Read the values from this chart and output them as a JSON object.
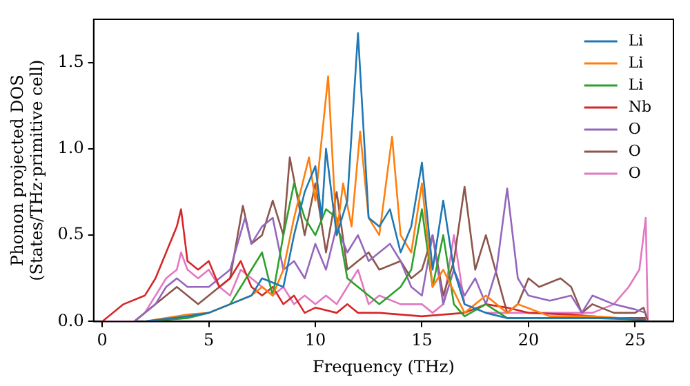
{
  "chart_data": {
    "type": "line",
    "xlabel": "Frequency (THz)",
    "ylabel": "Phonon projected DOS\n(States/THz·primitive cell)",
    "xlim": [
      -0.4,
      26.8
    ],
    "ylim": [
      0,
      1.75
    ],
    "xticks": [
      0,
      5,
      10,
      15,
      20,
      25
    ],
    "yticks": [
      {
        "value": 0,
        "label": "0.0"
      },
      {
        "value": 0.5,
        "label": "0.5"
      },
      {
        "value": 1,
        "label": "1.0"
      },
      {
        "value": 1.5,
        "label": "1.5"
      }
    ],
    "legend": "top right",
    "grid": false,
    "marker": "none",
    "line_style": "solid",
    "series": [
      {
        "name": "Li",
        "color": "#1f77b4",
        "x": [
          2,
          4,
          5,
          6,
          7,
          7.5,
          8.5,
          9,
          9.5,
          10,
          10.3,
          10.5,
          11,
          11.5,
          12,
          12.5,
          13,
          13.5,
          14,
          14.5,
          15,
          15.5,
          16,
          16.5,
          17,
          18,
          19,
          20,
          22,
          24,
          25.5
        ],
        "values": [
          0,
          0.03,
          0.05,
          0.1,
          0.15,
          0.25,
          0.2,
          0.5,
          0.75,
          0.9,
          0.6,
          1.0,
          0.5,
          0.7,
          1.67,
          0.6,
          0.55,
          0.65,
          0.4,
          0.55,
          0.92,
          0.3,
          0.7,
          0.3,
          0.1,
          0.05,
          0.02,
          0.02,
          0.02,
          0.02,
          0.01
        ]
      },
      {
        "name": "Li",
        "color": "#ff7f0e",
        "x": [
          2,
          4,
          5,
          6,
          7,
          7.5,
          8,
          8.5,
          9,
          9.7,
          10,
          10.6,
          11,
          11.3,
          11.7,
          12.1,
          12.5,
          13,
          13.6,
          14,
          14.5,
          15,
          15.5,
          16,
          17,
          18,
          19,
          19.5,
          21,
          23,
          25.5
        ],
        "values": [
          0,
          0.04,
          0.05,
          0.1,
          0.15,
          0.2,
          0.15,
          0.3,
          0.6,
          0.95,
          0.7,
          1.42,
          0.5,
          0.8,
          0.55,
          1.1,
          0.6,
          0.5,
          1.07,
          0.5,
          0.4,
          0.8,
          0.2,
          0.3,
          0.05,
          0.15,
          0.05,
          0.1,
          0.03,
          0.03,
          0.01
        ]
      },
      {
        "name": "Li",
        "color": "#2ca02c",
        "x": [
          2,
          4,
          5,
          6,
          7,
          7.5,
          8,
          8.5,
          9,
          9.5,
          10,
          10.5,
          11,
          11.5,
          12,
          13,
          13.5,
          14,
          14.5,
          15,
          15.5,
          16,
          16.5,
          17,
          18,
          19,
          21,
          23,
          25.5
        ],
        "values": [
          0,
          0.02,
          0.05,
          0.1,
          0.3,
          0.4,
          0.15,
          0.5,
          0.8,
          0.6,
          0.5,
          0.65,
          0.6,
          0.25,
          0.2,
          0.1,
          0.15,
          0.2,
          0.3,
          0.65,
          0.2,
          0.5,
          0.1,
          0.03,
          0.1,
          0.02,
          0.02,
          0.02,
          0.01
        ]
      },
      {
        "name": "Nb",
        "color": "#d62728",
        "x": [
          0,
          1,
          2,
          2.5,
          3,
          3.5,
          3.7,
          4,
          4.5,
          5,
          5.5,
          6,
          6.5,
          7,
          7.5,
          8,
          8.5,
          9,
          9.5,
          10,
          11,
          11.5,
          12,
          13,
          15,
          17,
          18,
          19,
          20,
          22,
          24,
          25.5
        ],
        "values": [
          0,
          0.1,
          0.15,
          0.25,
          0.4,
          0.55,
          0.65,
          0.35,
          0.3,
          0.35,
          0.2,
          0.25,
          0.35,
          0.2,
          0.15,
          0.2,
          0.1,
          0.15,
          0.05,
          0.08,
          0.05,
          0.1,
          0.05,
          0.05,
          0.03,
          0.05,
          0.1,
          0.08,
          0.05,
          0.04,
          0.02,
          0.02
        ]
      },
      {
        "name": "O",
        "color": "#9467bd",
        "x": [
          1.5,
          2.5,
          3,
          3.5,
          4,
          5,
          5.5,
          6,
          6.7,
          7,
          7.5,
          8,
          8.5,
          9,
          9.5,
          10,
          10.5,
          11,
          11.5,
          12,
          12.5,
          13,
          13.5,
          14,
          14.5,
          15,
          15.5,
          16,
          16.5,
          17,
          17.5,
          18,
          18.5,
          19,
          19.5,
          20,
          21,
          22,
          22.5,
          23,
          24,
          25,
          25.5
        ],
        "values": [
          0,
          0.1,
          0.2,
          0.25,
          0.2,
          0.2,
          0.25,
          0.3,
          0.6,
          0.45,
          0.55,
          0.6,
          0.3,
          0.35,
          0.25,
          0.45,
          0.3,
          0.55,
          0.4,
          0.5,
          0.35,
          0.4,
          0.45,
          0.35,
          0.2,
          0.15,
          0.5,
          0.1,
          0.3,
          0.15,
          0.25,
          0.1,
          0.3,
          0.77,
          0.25,
          0.15,
          0.12,
          0.15,
          0.05,
          0.15,
          0.1,
          0.07,
          0.05
        ]
      },
      {
        "name": "O",
        "color": "#8c564b",
        "x": [
          1.5,
          2.5,
          3,
          3.5,
          4,
          4.5,
          5,
          5.5,
          6,
          6.6,
          7,
          7.5,
          8,
          8.5,
          8.8,
          9.5,
          10,
          10.5,
          11,
          11.5,
          12,
          12.5,
          13,
          14,
          14.5,
          15,
          15.5,
          16,
          16.5,
          17,
          17.5,
          18,
          19,
          19.5,
          20,
          20.5,
          21.5,
          22,
          22.5,
          23,
          24,
          25,
          25.4,
          25.6
        ],
        "values": [
          0,
          0.1,
          0.15,
          0.2,
          0.15,
          0.1,
          0.15,
          0.2,
          0.25,
          0.67,
          0.45,
          0.5,
          0.7,
          0.5,
          0.95,
          0.5,
          0.8,
          0.4,
          0.75,
          0.3,
          0.35,
          0.4,
          0.3,
          0.35,
          0.25,
          0.3,
          0.5,
          0.15,
          0.35,
          0.78,
          0.3,
          0.5,
          0.05,
          0.1,
          0.25,
          0.2,
          0.25,
          0.2,
          0.05,
          0.1,
          0.05,
          0.05,
          0.08,
          0
        ]
      },
      {
        "name": "O",
        "color": "#e377c2",
        "x": [
          0,
          1.5,
          2,
          2.5,
          3,
          3.5,
          3.7,
          4,
          4.5,
          5,
          5.5,
          6,
          6.5,
          7,
          7.5,
          8,
          8.5,
          9,
          9.5,
          10,
          10.5,
          11,
          11.5,
          12,
          12.5,
          13,
          14,
          15,
          15.5,
          16,
          16.5,
          17,
          18,
          20,
          22,
          23,
          24,
          24.7,
          25.2,
          25.5,
          25.6
        ],
        "values": [
          0,
          0,
          0.05,
          0.15,
          0.25,
          0.3,
          0.4,
          0.3,
          0.25,
          0.3,
          0.2,
          0.15,
          0.3,
          0.25,
          0.2,
          0.15,
          0.2,
          0.1,
          0.15,
          0.1,
          0.15,
          0.1,
          0.2,
          0.3,
          0.1,
          0.15,
          0.1,
          0.1,
          0.05,
          0.1,
          0.5,
          0.1,
          0.05,
          0.05,
          0.05,
          0.05,
          0.1,
          0.2,
          0.3,
          0.6,
          0
        ]
      }
    ]
  }
}
